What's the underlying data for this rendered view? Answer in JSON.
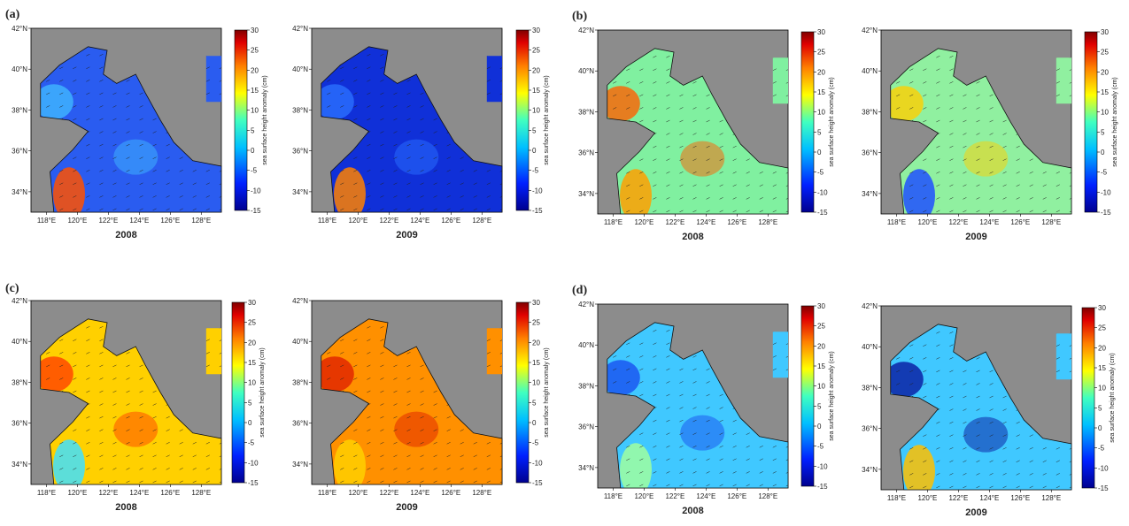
{
  "panels": [
    {
      "label": "(a)",
      "maps": [
        {
          "year": "2008"
        },
        {
          "year": "2009"
        }
      ]
    },
    {
      "label": "(b)",
      "maps": [
        {
          "year": "2008"
        },
        {
          "year": "2009"
        }
      ]
    },
    {
      "label": "(c)",
      "maps": [
        {
          "year": "2008"
        },
        {
          "year": "2009"
        }
      ]
    },
    {
      "label": "(d)",
      "maps": [
        {
          "year": "2008"
        },
        {
          "year": "2009"
        }
      ]
    }
  ],
  "axes": {
    "lat_ticks": [
      "34°N",
      "36°N",
      "38°N",
      "40°N",
      "42°N"
    ],
    "lon_ticks": [
      "118°E",
      "120°E",
      "122°E",
      "124°E",
      "126°E",
      "128°E"
    ]
  },
  "colorbar": {
    "label": "sea surface height anomaly (cm)",
    "ticks": [
      30,
      25,
      20,
      15,
      10,
      5,
      0,
      -5,
      -10,
      -15
    ]
  }
}
